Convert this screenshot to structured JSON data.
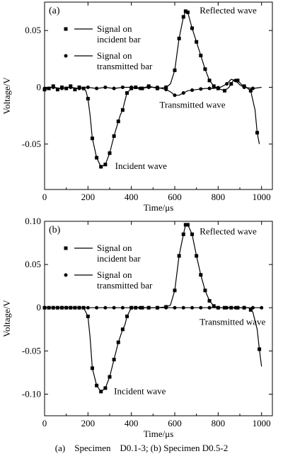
{
  "caption": "(a)    Specimen    D0.1-3; (b) Specimen D0.5-2",
  "chart_data": [
    {
      "type": "line",
      "panel_label": "(a)",
      "xlabel": "Time/μs",
      "ylabel": "Voltage/V",
      "xlim": [
        0,
        1050
      ],
      "ylim": [
        -0.09,
        0.075
      ],
      "xticks": [
        0,
        200,
        400,
        600,
        800,
        1000
      ],
      "yticks": [
        -0.05,
        0,
        0.05
      ],
      "ytick_labels": [
        "-0.05",
        "0",
        "0.05"
      ],
      "grid": false,
      "legend": "upper-left",
      "series": [
        {
          "name": "Signal on incident bar",
          "marker": "square",
          "points": [
            [
              0,
              -0.002
            ],
            [
              20,
              -0.001
            ],
            [
              40,
              0.001
            ],
            [
              60,
              -0.002
            ],
            [
              80,
              0.0
            ],
            [
              100,
              -0.001
            ],
            [
              120,
              0.001
            ],
            [
              140,
              -0.002
            ],
            [
              160,
              0.0
            ],
            [
              180,
              -0.001
            ],
            [
              190,
              -0.003
            ],
            [
              200,
              -0.01
            ],
            [
              210,
              -0.025
            ],
            [
              220,
              -0.045
            ],
            [
              240,
              -0.062
            ],
            [
              260,
              -0.07
            ],
            [
              280,
              -0.068
            ],
            [
              300,
              -0.058
            ],
            [
              320,
              -0.043
            ],
            [
              340,
              -0.03
            ],
            [
              350,
              -0.024
            ],
            [
              360,
              -0.02
            ],
            [
              370,
              -0.012
            ],
            [
              380,
              -0.005
            ],
            [
              400,
              -0.001
            ],
            [
              420,
              0.0
            ],
            [
              450,
              -0.001
            ],
            [
              480,
              0.001
            ],
            [
              520,
              -0.001
            ],
            [
              560,
              0.0
            ],
            [
              580,
              0.003
            ],
            [
              600,
              0.015
            ],
            [
              620,
              0.043
            ],
            [
              640,
              0.062
            ],
            [
              650,
              0.067
            ],
            [
              660,
              0.066
            ],
            [
              680,
              0.052
            ],
            [
              700,
              0.04
            ],
            [
              720,
              0.028
            ],
            [
              740,
              0.016
            ],
            [
              760,
              0.006
            ],
            [
              780,
              0.001
            ],
            [
              800,
              -0.001
            ],
            [
              830,
              -0.003
            ],
            [
              850,
              0.0
            ],
            [
              870,
              0.006
            ],
            [
              890,
              0.006
            ],
            [
              910,
              0.002
            ],
            [
              930,
              0.0
            ],
            [
              950,
              -0.003
            ],
            [
              970,
              -0.02
            ],
            [
              980,
              -0.04
            ],
            [
              990,
              -0.05
            ]
          ],
          "marker_x": [
            0,
            20,
            40,
            60,
            80,
            100,
            120,
            140,
            160,
            180,
            200,
            220,
            240,
            260,
            280,
            300,
            320,
            340,
            360,
            380,
            400,
            420,
            450,
            480,
            520,
            560,
            600,
            620,
            640,
            650,
            660,
            680,
            700,
            720,
            740,
            760,
            780,
            800,
            830,
            860,
            890,
            920,
            950,
            980
          ]
        },
        {
          "name": "Signal on transmitted bar",
          "marker": "circle",
          "points": [
            [
              0,
              -0.001
            ],
            [
              40,
              0.0
            ],
            [
              80,
              -0.001
            ],
            [
              120,
              0.0
            ],
            [
              160,
              -0.001
            ],
            [
              200,
              0.0
            ],
            [
              240,
              -0.001
            ],
            [
              280,
              0.0
            ],
            [
              320,
              -0.001
            ],
            [
              360,
              0.0
            ],
            [
              400,
              0.0
            ],
            [
              440,
              -0.001
            ],
            [
              480,
              0.0
            ],
            [
              520,
              0.0
            ],
            [
              560,
              -0.002
            ],
            [
              580,
              -0.004
            ],
            [
              600,
              -0.007
            ],
            [
              620,
              -0.007
            ],
            [
              640,
              -0.005
            ],
            [
              660,
              -0.003
            ],
            [
              700,
              -0.002
            ],
            [
              740,
              -0.001
            ],
            [
              780,
              -0.001
            ],
            [
              810,
              0.0
            ],
            [
              840,
              0.003
            ],
            [
              860,
              0.007
            ],
            [
              880,
              0.006
            ],
            [
              900,
              0.002
            ],
            [
              920,
              0.0
            ],
            [
              960,
              -0.001
            ],
            [
              1000,
              0.0
            ]
          ],
          "marker_x": [
            0,
            40,
            80,
            120,
            160,
            200,
            240,
            280,
            320,
            360,
            400,
            440,
            480,
            520,
            560,
            600,
            640,
            680,
            720,
            760,
            800,
            840,
            880,
            920,
            960
          ]
        }
      ],
      "annotations": [
        {
          "text": "Reflected wave",
          "x": 715,
          "y": 0.065
        },
        {
          "text": "Transmitted wave",
          "x": 530,
          "y": -0.018
        },
        {
          "text": "Incident wave",
          "x": 325,
          "y": -0.072
        }
      ]
    },
    {
      "type": "line",
      "panel_label": "(b)",
      "xlabel": "Time/μs",
      "ylabel": "Voltage/V",
      "xlim": [
        0,
        1050
      ],
      "ylim": [
        -0.125,
        0.1
      ],
      "xticks": [
        0,
        200,
        400,
        600,
        800,
        1000
      ],
      "yticks": [
        -0.1,
        -0.05,
        0,
        0.05,
        0.1
      ],
      "ytick_labels": [
        "-0.10",
        "-0.05",
        "0",
        "0.05",
        "0.10"
      ],
      "grid": false,
      "legend": "upper-left",
      "series": [
        {
          "name": "Signal on incident bar",
          "marker": "square",
          "points": [
            [
              0,
              0.0
            ],
            [
              40,
              0.0
            ],
            [
              80,
              0.0
            ],
            [
              120,
              0.0
            ],
            [
              160,
              0.0
            ],
            [
              180,
              0.0
            ],
            [
              200,
              -0.01
            ],
            [
              210,
              -0.035
            ],
            [
              220,
              -0.07
            ],
            [
              240,
              -0.09
            ],
            [
              260,
              -0.097
            ],
            [
              280,
              -0.093
            ],
            [
              300,
              -0.08
            ],
            [
              320,
              -0.06
            ],
            [
              340,
              -0.04
            ],
            [
              360,
              -0.025
            ],
            [
              370,
              -0.02
            ],
            [
              380,
              -0.01
            ],
            [
              400,
              0.0
            ],
            [
              440,
              0.0
            ],
            [
              480,
              0.0
            ],
            [
              520,
              0.0
            ],
            [
              560,
              0.001
            ],
            [
              580,
              0.003
            ],
            [
              600,
              0.02
            ],
            [
              620,
              0.06
            ],
            [
              640,
              0.085
            ],
            [
              650,
              0.096
            ],
            [
              660,
              0.096
            ],
            [
              680,
              0.085
            ],
            [
              700,
              0.06
            ],
            [
              720,
              0.038
            ],
            [
              740,
              0.02
            ],
            [
              760,
              0.008
            ],
            [
              780,
              0.002
            ],
            [
              800,
              0.0
            ],
            [
              850,
              0.0
            ],
            [
              900,
              0.0
            ],
            [
              940,
              0.0
            ],
            [
              960,
              -0.005
            ],
            [
              980,
              -0.025
            ],
            [
              990,
              -0.048
            ],
            [
              1000,
              -0.068
            ]
          ],
          "marker_x": [
            0,
            20,
            40,
            60,
            80,
            100,
            120,
            140,
            160,
            180,
            200,
            220,
            240,
            260,
            280,
            300,
            320,
            340,
            360,
            380,
            400,
            420,
            450,
            480,
            520,
            560,
            600,
            620,
            640,
            650,
            660,
            680,
            700,
            720,
            740,
            760,
            780,
            800,
            830,
            860,
            890,
            920,
            950,
            990
          ]
        },
        {
          "name": "Signal on transmitted bar",
          "marker": "circle",
          "points": [
            [
              0,
              0.0
            ],
            [
              100,
              0.0
            ],
            [
              200,
              0.0
            ],
            [
              300,
              0.0
            ],
            [
              400,
              0.0
            ],
            [
              500,
              0.0
            ],
            [
              600,
              0.0
            ],
            [
              700,
              0.0
            ],
            [
              800,
              0.0
            ],
            [
              900,
              0.0
            ],
            [
              1000,
              0.0
            ]
          ],
          "marker_x": [
            0,
            40,
            80,
            120,
            160,
            200,
            240,
            280,
            320,
            360,
            400,
            440,
            480,
            520,
            560,
            600,
            640,
            680,
            720,
            760,
            800,
            840,
            880,
            920,
            960,
            1000
          ]
        }
      ],
      "annotations": [
        {
          "text": "Reflected wave",
          "x": 715,
          "y": 0.085
        },
        {
          "text": "Transmitted wave",
          "x": 715,
          "y": -0.02
        },
        {
          "text": "Incident wave",
          "x": 320,
          "y": -0.1
        }
      ]
    }
  ]
}
